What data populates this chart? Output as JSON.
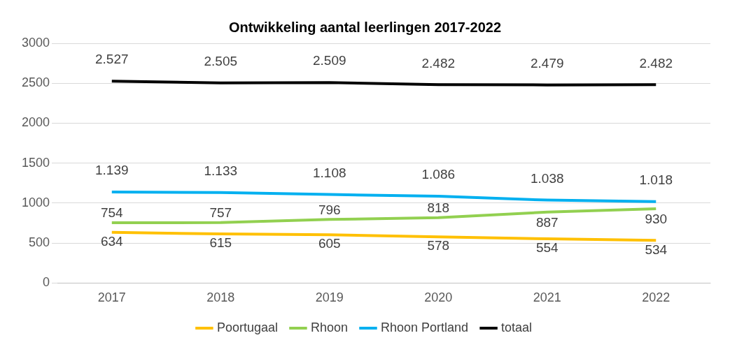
{
  "chart_data": {
    "type": "line",
    "title": "Ontwikkeling aantal leerlingen 2017-2022",
    "categories": [
      "2017",
      "2018",
      "2019",
      "2020",
      "2021",
      "2022"
    ],
    "series": [
      {
        "name": "Poortugaal",
        "color": "#ffc000",
        "values": [
          634,
          615,
          605,
          578,
          554,
          534
        ],
        "value_labels": [
          "634",
          "615",
          "605",
          "578",
          "554",
          "534"
        ]
      },
      {
        "name": "Rhoon",
        "color": "#92d050",
        "values": [
          754,
          757,
          796,
          818,
          887,
          930
        ],
        "value_labels": [
          "754",
          "757",
          "796",
          "818",
          "887",
          "930"
        ]
      },
      {
        "name": "Rhoon Portland",
        "color": "#00b0f0",
        "values": [
          1139,
          1133,
          1108,
          1086,
          1038,
          1018
        ],
        "value_labels": [
          "1.139",
          "1.133",
          "1.108",
          "1.086",
          "1.038",
          "1.018"
        ]
      },
      {
        "name": "totaal",
        "color": "#000000",
        "values": [
          2527,
          2505,
          2509,
          2482,
          2479,
          2482
        ],
        "value_labels": [
          "2.527",
          "2.505",
          "2.509",
          "2.482",
          "2.479",
          "2.482"
        ]
      }
    ],
    "ylim": [
      0,
      3000
    ],
    "yticks": [
      0,
      500,
      1000,
      1500,
      2000,
      2500,
      3000
    ],
    "grid": "y",
    "legend": "bottom",
    "marker": "none",
    "line_style": "solid"
  }
}
